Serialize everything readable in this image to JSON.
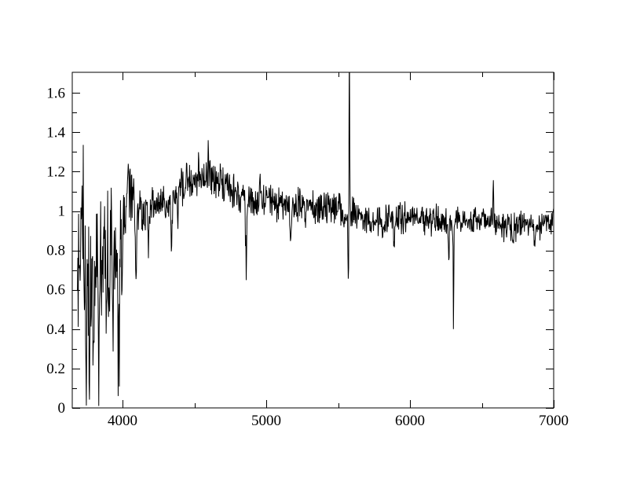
{
  "figure": {
    "background": "#ffffff",
    "frame_color": "#000000"
  },
  "chart_data": {
    "type": "line",
    "title": "",
    "xlabel": "",
    "ylabel": "",
    "xlim": [
      3650,
      7000
    ],
    "ylim": [
      0,
      1.705
    ],
    "grid": false,
    "legend": "none",
    "tick_style": "inward-all-sides",
    "line_color": "#000000",
    "background_color": "#ffffff",
    "x_axis": {
      "major_ticks": [
        4000,
        5000,
        6000,
        7000
      ],
      "major_tick_labels": [
        "4000",
        "5000",
        "6000",
        "7000"
      ],
      "minor_ticks": [
        4500,
        5500,
        6500
      ]
    },
    "y_axis": {
      "major_ticks": [
        0,
        0.2,
        0.4,
        0.6,
        0.8,
        1.0,
        1.2,
        1.4,
        1.6
      ],
      "major_tick_labels": [
        "0",
        "0.2",
        "0.4",
        "0.6",
        "0.8",
        "1",
        "1.2",
        "1.4",
        "1.6"
      ],
      "minor_ticks": [
        0.1,
        0.3,
        0.5,
        0.7,
        0.9,
        1.1,
        1.3,
        1.5
      ]
    },
    "description": "Normalized spectrum (flux vs wavelength in Angstroms). Flux fluctuates about 1.0 with noise growing strongly blueward of 4000 A (excursions 0.05-1.5), deep near-zero dips near 3975-3995 A, broad hump ~1.15 at 4400-4750 A, absorption dips near 4100, 4340, 4861, 5170, 5890 A, a narrow sky-residual spike at 5577 A clipped at the plot top with adjacent dip to ~0.65, a deep dip to ~0.38 at 6300 A, a spike to ~1.22 at 6580 A, and a ~0.93 continuum with +/-0.1 noise out to 7000 A.",
    "series": [
      {
        "name": "normalized-spectrum",
        "color": "#000000",
        "synthesis": {
          "x_start": 3686,
          "x_end": 7000,
          "x_step": 2.7,
          "seed": 91,
          "clamp_min": 0.01,
          "envelope": [
            [
              3686,
              0.72,
              0.48
            ],
            [
              3720,
              0.7,
              0.5
            ],
            [
              3760,
              0.66,
              0.48
            ],
            [
              3800,
              0.7,
              0.46
            ],
            [
              3850,
              0.72,
              0.44
            ],
            [
              3900,
              0.78,
              0.4
            ],
            [
              3950,
              0.82,
              0.36
            ],
            [
              4000,
              0.98,
              0.3
            ],
            [
              4030,
              1.1,
              0.22
            ],
            [
              4060,
              1.05,
              0.16
            ],
            [
              4100,
              1.0,
              0.14
            ],
            [
              4180,
              1.02,
              0.12
            ],
            [
              4300,
              1.05,
              0.12
            ],
            [
              4400,
              1.12,
              0.12
            ],
            [
              4500,
              1.16,
              0.12
            ],
            [
              4600,
              1.17,
              0.12
            ],
            [
              4700,
              1.13,
              0.11
            ],
            [
              4800,
              1.09,
              0.11
            ],
            [
              4900,
              1.06,
              0.13
            ],
            [
              5000,
              1.06,
              0.13
            ],
            [
              5100,
              1.04,
              0.12
            ],
            [
              5200,
              1.03,
              0.11
            ],
            [
              5300,
              1.02,
              0.1
            ],
            [
              5400,
              1.01,
              0.1
            ],
            [
              5500,
              1.02,
              0.1
            ],
            [
              5600,
              0.99,
              0.1
            ],
            [
              5700,
              0.96,
              0.1
            ],
            [
              5800,
              0.94,
              0.1
            ],
            [
              5900,
              0.96,
              0.1
            ],
            [
              6000,
              0.97,
              0.09
            ],
            [
              6100,
              0.96,
              0.09
            ],
            [
              6200,
              0.95,
              0.09
            ],
            [
              6300,
              0.94,
              0.09
            ],
            [
              6400,
              0.95,
              0.09
            ],
            [
              6500,
              0.97,
              0.09
            ],
            [
              6600,
              0.94,
              0.09
            ],
            [
              6700,
              0.92,
              0.09
            ],
            [
              6800,
              0.93,
              0.09
            ],
            [
              6900,
              0.92,
              0.09
            ],
            [
              7000,
              0.96,
              0.09
            ]
          ],
          "features": [
            [
              3715,
              0.5,
              5
            ],
            [
              3728,
              0.35,
              4
            ],
            [
              3745,
              -0.45,
              5
            ],
            [
              3770,
              -0.4,
              4
            ],
            [
              3798,
              -0.5,
              5
            ],
            [
              3835,
              -0.55,
              5
            ],
            [
              3870,
              0.4,
              4
            ],
            [
              3889,
              -0.45,
              4
            ],
            [
              3933,
              -0.55,
              4
            ],
            [
              3969,
              -0.6,
              4
            ],
            [
              3977,
              -0.55,
              3
            ],
            [
              3995,
              -0.55,
              3
            ],
            [
              4042,
              0.28,
              4
            ],
            [
              4093,
              -0.4,
              5
            ],
            [
              4180,
              -0.2,
              4
            ],
            [
              4340,
              -0.36,
              5
            ],
            [
              4383,
              -0.18,
              4
            ],
            [
              4528,
              0.14,
              3
            ],
            [
              4597,
              0.18,
              3
            ],
            [
              4861,
              -0.4,
              6
            ],
            [
              4955,
              0.16,
              3
            ],
            [
              5170,
              -0.18,
              6
            ],
            [
              5270,
              -0.1,
              5
            ],
            [
              5572,
              -0.42,
              4
            ],
            [
              5578,
              1.0,
              3
            ],
            [
              5890,
              -0.16,
              6
            ],
            [
              6270,
              -0.22,
              4
            ],
            [
              6303,
              -0.56,
              3
            ],
            [
              6580,
              0.27,
              3
            ],
            [
              6716,
              -0.12,
              5
            ],
            [
              6868,
              -0.12,
              7
            ]
          ]
        }
      }
    ]
  }
}
